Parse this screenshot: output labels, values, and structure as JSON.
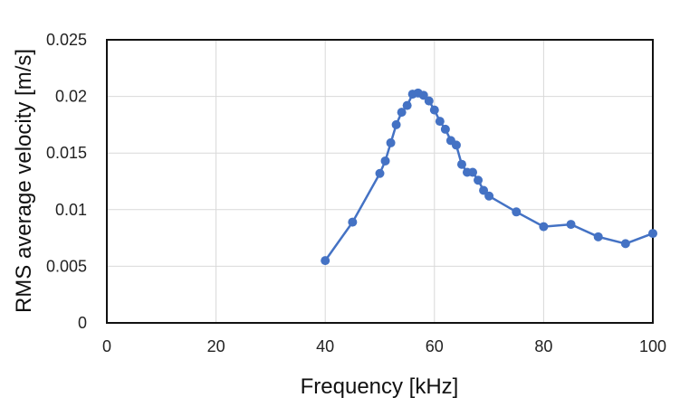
{
  "chart_data": {
    "type": "line",
    "title": "",
    "xlabel": "Frequency [kHz]",
    "ylabel": "RMS average velocity [m/s]",
    "xlim": [
      0,
      100
    ],
    "ylim": [
      0,
      0.025
    ],
    "x_ticks": [
      "0",
      "20",
      "40",
      "60",
      "80",
      "100"
    ],
    "y_ticks": [
      "0",
      "0.005",
      "0.01",
      "0.015",
      "0.02",
      "0.025"
    ],
    "grid": true,
    "legend": "none",
    "series": [
      {
        "color": "#4472c4",
        "marker": "circle",
        "points": [
          [
            40,
            0.0055
          ],
          [
            45,
            0.0089
          ],
          [
            50,
            0.0132
          ],
          [
            51,
            0.0143
          ],
          [
            52,
            0.0159
          ],
          [
            53,
            0.0175
          ],
          [
            54,
            0.0186
          ],
          [
            55,
            0.0192
          ],
          [
            56,
            0.0202
          ],
          [
            57,
            0.0203
          ],
          [
            58,
            0.0201
          ],
          [
            59,
            0.0196
          ],
          [
            60,
            0.0188
          ],
          [
            61,
            0.0178
          ],
          [
            62,
            0.0171
          ],
          [
            63,
            0.0161
          ],
          [
            64,
            0.0157
          ],
          [
            65,
            0.014
          ],
          [
            66,
            0.0133
          ],
          [
            67,
            0.0133
          ],
          [
            68,
            0.0126
          ],
          [
            69,
            0.0117
          ],
          [
            70,
            0.0112
          ],
          [
            75,
            0.0098
          ],
          [
            80,
            0.0085
          ],
          [
            85,
            0.0087
          ],
          [
            90,
            0.0076
          ],
          [
            95,
            0.007
          ],
          [
            100,
            0.0079
          ]
        ]
      }
    ]
  }
}
